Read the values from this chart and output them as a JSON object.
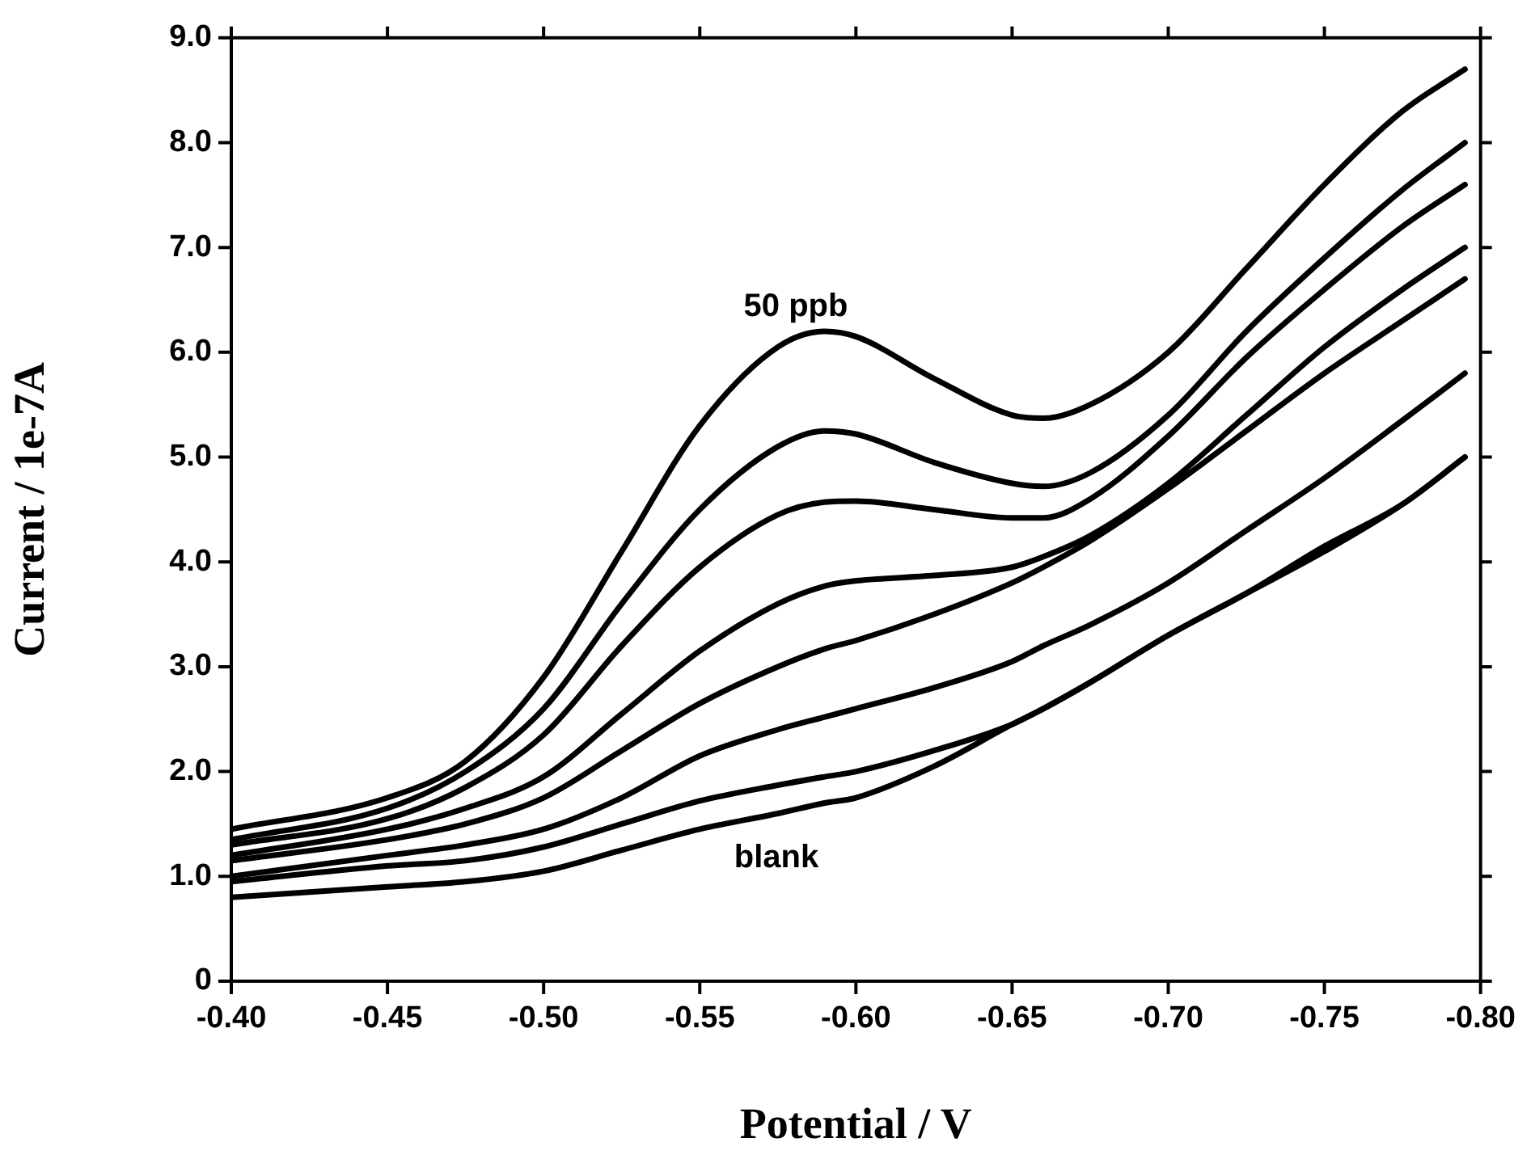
{
  "chart_data": {
    "type": "line",
    "xlabel": "Potential / V",
    "ylabel": "Current / 1e-7A",
    "x": [
      -0.4,
      -0.45,
      -0.475,
      -0.5,
      -0.525,
      -0.55,
      -0.575,
      -0.59,
      -0.6,
      -0.625,
      -0.65,
      -0.66,
      -0.675,
      -0.7,
      -0.725,
      -0.75,
      -0.775,
      -0.795
    ],
    "series": [
      {
        "color": "#000000",
        "values": [
          1.45,
          1.75,
          2.1,
          2.9,
          4.1,
          5.3,
          6.05,
          6.2,
          6.15,
          5.75,
          5.4,
          5.37,
          5.5,
          6.0,
          6.8,
          7.6,
          8.3,
          8.7
        ]
      },
      {
        "color": "#000000",
        "values": [
          1.35,
          1.65,
          2.0,
          2.6,
          3.6,
          4.5,
          5.1,
          5.25,
          5.22,
          4.95,
          4.75,
          4.72,
          4.85,
          5.4,
          6.2,
          6.9,
          7.55,
          8.0
        ]
      },
      {
        "color": "#000000",
        "values": [
          1.3,
          1.55,
          1.85,
          2.35,
          3.2,
          3.95,
          4.45,
          4.57,
          4.58,
          4.5,
          4.42,
          4.42,
          4.6,
          5.2,
          5.95,
          6.6,
          7.2,
          7.6
        ]
      },
      {
        "color": "#000000",
        "values": [
          1.2,
          1.45,
          1.65,
          1.95,
          2.55,
          3.15,
          3.6,
          3.77,
          3.82,
          3.87,
          3.95,
          4.05,
          4.25,
          4.75,
          5.4,
          6.05,
          6.6,
          7.0
        ]
      },
      {
        "color": "#000000",
        "values": [
          1.15,
          1.35,
          1.5,
          1.75,
          2.2,
          2.65,
          3.0,
          3.17,
          3.25,
          3.5,
          3.8,
          3.95,
          4.2,
          4.7,
          5.25,
          5.8,
          6.3,
          6.7
        ]
      },
      {
        "color": "#000000",
        "values": [
          1.0,
          1.2,
          1.3,
          1.45,
          1.75,
          2.15,
          2.4,
          2.52,
          2.6,
          2.8,
          3.05,
          3.2,
          3.4,
          3.8,
          4.3,
          4.8,
          5.35,
          5.8
        ]
      },
      {
        "color": "#000000",
        "values": [
          0.95,
          1.1,
          1.15,
          1.28,
          1.5,
          1.72,
          1.87,
          1.95,
          2.0,
          2.2,
          2.45,
          2.6,
          2.85,
          3.3,
          3.7,
          4.1,
          4.55,
          5.0
        ]
      },
      {
        "color": "#000000",
        "values": [
          0.8,
          0.9,
          0.95,
          1.05,
          1.25,
          1.45,
          1.6,
          1.7,
          1.75,
          2.05,
          2.45,
          2.6,
          2.85,
          3.3,
          3.7,
          4.15,
          4.55,
          5.0
        ]
      }
    ],
    "xlim": [
      -0.4,
      -0.8
    ],
    "xticks": [
      {
        "value": -0.4,
        "label": "-0.40"
      },
      {
        "value": -0.45,
        "label": "-0.45"
      },
      {
        "value": -0.5,
        "label": "-0.50"
      },
      {
        "value": -0.55,
        "label": "-0.55"
      },
      {
        "value": -0.6,
        "label": "-0.60"
      },
      {
        "value": -0.65,
        "label": "-0.65"
      },
      {
        "value": -0.7,
        "label": "-0.70"
      },
      {
        "value": -0.75,
        "label": "-0.75"
      },
      {
        "value": -0.8,
        "label": "-0.80"
      }
    ],
    "ylim": [
      0,
      9
    ],
    "yticks": [
      0,
      {
        "value": 1,
        "label": "1.0"
      },
      {
        "value": 2,
        "label": "2.0"
      },
      {
        "value": 3,
        "label": "3.0"
      },
      {
        "value": 4,
        "label": "4.0"
      },
      {
        "value": 5,
        "label": "5.0"
      },
      {
        "value": 6,
        "label": "6.0"
      },
      {
        "value": 7,
        "label": "7.0"
      },
      {
        "value": 8,
        "label": "8.0"
      },
      {
        "value": 9,
        "label": "9.0"
      }
    ],
    "annotations": [
      "50 ppb",
      "blank"
    ],
    "grid": false,
    "legend": false,
    "marker": "none",
    "line_style": "solid"
  }
}
